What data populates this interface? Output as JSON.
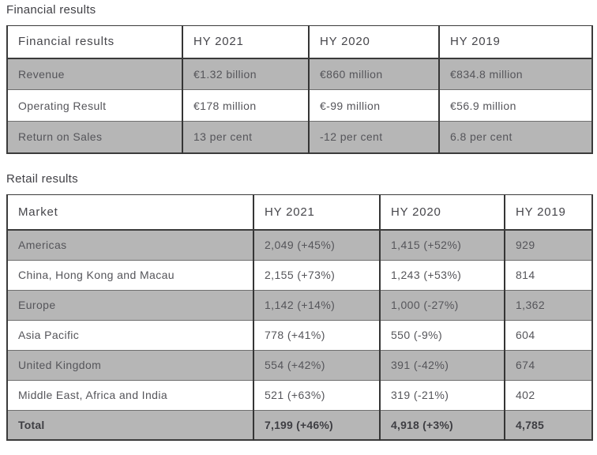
{
  "financial": {
    "title": "Financial results",
    "table": {
      "headers": [
        "Financial results",
        "HY 2021",
        "HY 2020",
        "HY 2019"
      ],
      "rows": [
        {
          "label": "Revenue",
          "values": [
            "€1.32 billion",
            "€860 million",
            "€834.8 million"
          ]
        },
        {
          "label": "Operating Result",
          "values": [
            "€178 million",
            "€-99 million",
            "€56.9 million"
          ]
        },
        {
          "label": "Return on Sales",
          "values": [
            "13 per cent",
            "-12 per cent",
            "6.8 per cent"
          ]
        }
      ]
    }
  },
  "retail": {
    "title": "Retail results",
    "table": {
      "headers": [
        "Market",
        "HY 2021",
        "HY 2020",
        "HY 2019"
      ],
      "rows": [
        {
          "label": "Americas",
          "values": [
            "2,049 (+45%)",
            "1,415 (+52%)",
            "929"
          ]
        },
        {
          "label": "China, Hong Kong and Macau",
          "values": [
            "2,155 (+73%)",
            "1,243 (+53%)",
            "814"
          ]
        },
        {
          "label": "Europe",
          "values": [
            "1,142 (+14%)",
            "1,000 (-27%)",
            "1,362"
          ]
        },
        {
          "label": "Asia Pacific",
          "values": [
            "778 (+41%)",
            "550 (-9%)",
            "604"
          ]
        },
        {
          "label": "United Kingdom",
          "values": [
            "554 (+42%)",
            "391 (-42%)",
            "674"
          ]
        },
        {
          "label": "Middle East, Africa and India",
          "values": [
            "521 (+63%)",
            "319 (-21%)",
            "402"
          ]
        },
        {
          "label": "Total",
          "values": [
            "7,199 (+46%)",
            "4,918 (+3%)",
            "4,785"
          ],
          "bold": true
        }
      ]
    }
  },
  "colors": {
    "row_shaded": "#b6b6b6",
    "divider_vertical": "#353535",
    "divider_horizontal": "#6f6f6f",
    "text": "#55555a",
    "title_text": "#3f3f44"
  }
}
